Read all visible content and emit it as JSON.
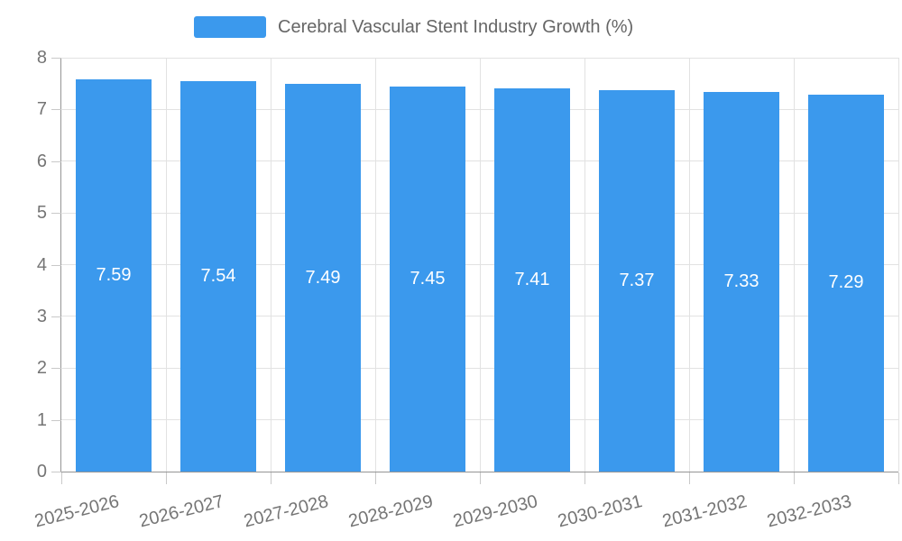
{
  "legend": {
    "label": "Cerebral Vascular Stent Industry Growth (%)"
  },
  "chart_data": {
    "type": "bar",
    "title": "Cerebral Vascular Stent Industry Growth (%)",
    "categories": [
      "2025-2026",
      "2026-2027",
      "2027-2028",
      "2028-2029",
      "2029-2030",
      "2030-2031",
      "2031-2032",
      "2032-2033"
    ],
    "values": [
      7.59,
      7.54,
      7.49,
      7.45,
      7.41,
      7.37,
      7.33,
      7.29
    ],
    "value_labels": [
      "7.59",
      "7.54",
      "7.49",
      "7.45",
      "7.41",
      "7.37",
      "7.33",
      "7.29"
    ],
    "xlabel": "",
    "ylabel": "",
    "ylim": [
      0,
      8
    ],
    "yticks": [
      0,
      1,
      2,
      3,
      4,
      5,
      6,
      7,
      8
    ],
    "grid": true,
    "legend_position": "top",
    "x_label_rotation_deg": -14
  },
  "colors": {
    "bar": "#3B99ED",
    "grid": "#E2E2E2",
    "axis_line": "#959595",
    "tick": "#C9C9C9",
    "tick_label": "#757575",
    "legend_text": "#666666",
    "value_label": "#FFFFFF",
    "background": "#FFFFFF"
  }
}
